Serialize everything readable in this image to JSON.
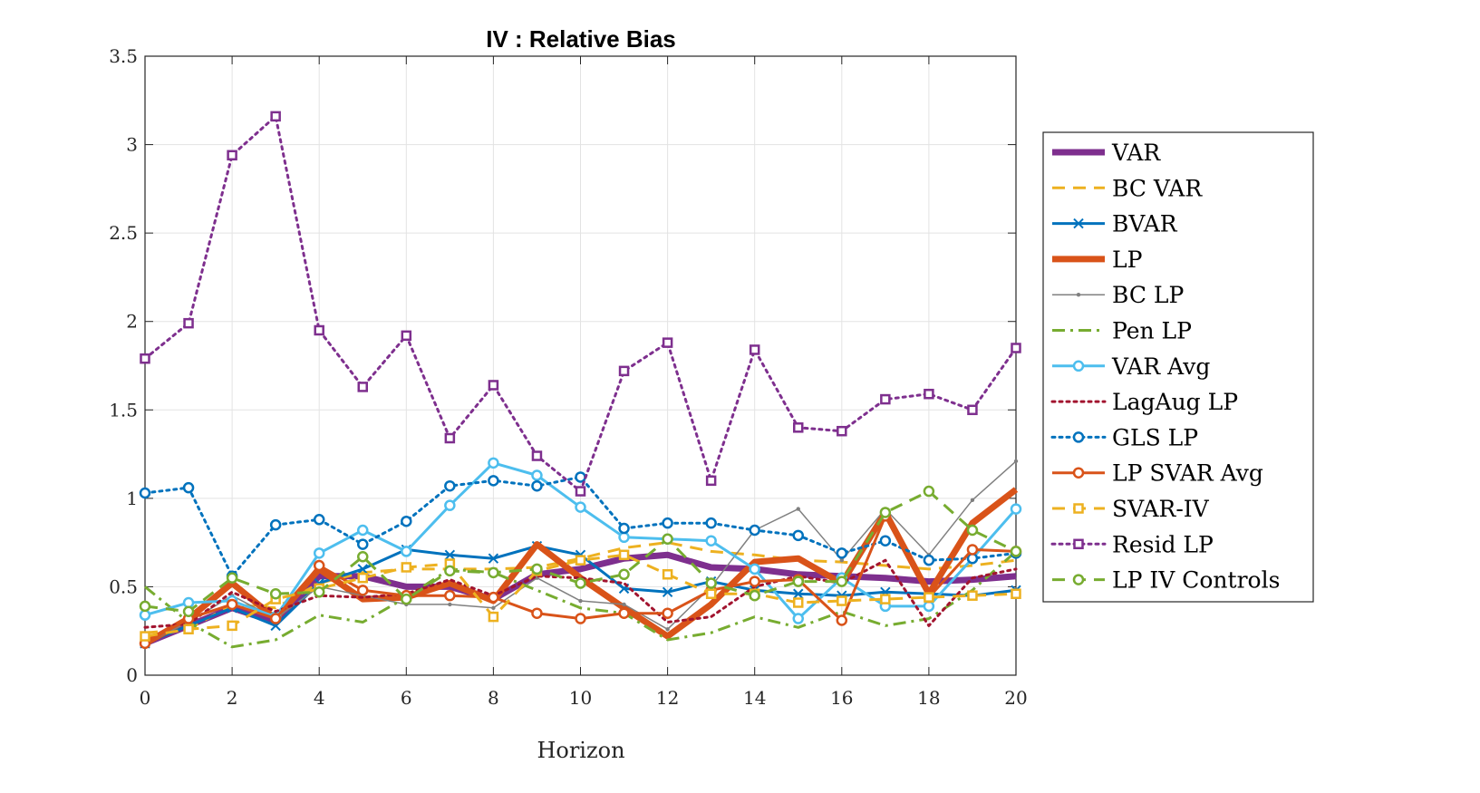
{
  "chart_data": {
    "type": "line",
    "title": "IV : Relative Bias",
    "xlabel": "Horizon",
    "ylabel": "",
    "xlim": [
      0,
      20
    ],
    "ylim": [
      0,
      3.5
    ],
    "xticks": [
      0,
      2,
      4,
      6,
      8,
      10,
      12,
      14,
      16,
      18,
      20
    ],
    "yticks": [
      0,
      0.5,
      1,
      1.5,
      2,
      2.5,
      3,
      3.5
    ],
    "ytick_labels": [
      "0",
      "0.5",
      "1",
      "1.5",
      "2",
      "2.5",
      "3",
      "3.5"
    ],
    "grid": true,
    "legend_position": "outside-right",
    "x": [
      0,
      1,
      2,
      3,
      4,
      5,
      6,
      7,
      8,
      9,
      10,
      11,
      12,
      13,
      14,
      15,
      16,
      17,
      18,
      19,
      20
    ],
    "series": [
      {
        "name": "VAR",
        "color": "#7E2F8E",
        "dash": "solid",
        "marker": "none",
        "values": [
          0.18,
          0.28,
          0.38,
          0.3,
          0.56,
          0.56,
          0.5,
          0.5,
          0.43,
          0.57,
          0.6,
          0.66,
          0.68,
          0.61,
          0.6,
          0.57,
          0.56,
          0.55,
          0.53,
          0.54,
          0.56
        ]
      },
      {
        "name": "BC VAR",
        "color": "#EDB120",
        "dash": "dashed",
        "marker": "none",
        "values": [
          0.24,
          0.26,
          0.4,
          0.38,
          0.52,
          0.58,
          0.6,
          0.6,
          0.6,
          0.61,
          0.66,
          0.72,
          0.75,
          0.7,
          0.68,
          0.65,
          0.64,
          0.62,
          0.6,
          0.62,
          0.65
        ]
      },
      {
        "name": "BVAR",
        "color": "#0072BD",
        "dash": "solid",
        "marker": "x",
        "values": [
          0.18,
          0.28,
          0.38,
          0.28,
          0.52,
          0.6,
          0.71,
          0.68,
          0.66,
          0.73,
          0.68,
          0.49,
          0.47,
          0.53,
          0.48,
          0.46,
          0.45,
          0.47,
          0.46,
          0.45,
          0.48
        ]
      },
      {
        "name": "LP",
        "color": "#D95319",
        "dash": "solid",
        "marker": "none",
        "values": [
          0.18,
          0.32,
          0.52,
          0.32,
          0.6,
          0.43,
          0.44,
          0.52,
          0.42,
          0.74,
          0.55,
          0.38,
          0.22,
          0.4,
          0.64,
          0.66,
          0.52,
          0.92,
          0.46,
          0.86,
          1.05
        ]
      },
      {
        "name": "BC LP",
        "color": "#808080",
        "dash": "solid",
        "marker": "dot",
        "values": [
          0.18,
          0.3,
          0.45,
          0.32,
          0.5,
          0.45,
          0.4,
          0.4,
          0.38,
          0.55,
          0.42,
          0.4,
          0.26,
          0.5,
          0.82,
          0.94,
          0.65,
          0.94,
          0.68,
          0.99,
          1.21
        ]
      },
      {
        "name": "Pen LP",
        "color": "#77AC30",
        "dash": "dashdot",
        "marker": "none",
        "values": [
          0.5,
          0.3,
          0.16,
          0.2,
          0.34,
          0.3,
          0.44,
          0.6,
          0.58,
          0.48,
          0.38,
          0.35,
          0.2,
          0.24,
          0.33,
          0.27,
          0.36,
          0.28,
          0.32,
          0.48,
          0.7
        ]
      },
      {
        "name": "VAR Avg",
        "color": "#4DBEEE",
        "dash": "solid",
        "marker": "circle",
        "values": [
          0.34,
          0.41,
          0.42,
          0.33,
          0.69,
          0.82,
          0.7,
          0.96,
          1.2,
          1.13,
          0.95,
          0.78,
          0.77,
          0.76,
          0.6,
          0.32,
          0.55,
          0.39,
          0.39,
          0.66,
          0.94
        ]
      },
      {
        "name": "LagAug LP",
        "color": "#A2142F",
        "dash": "dotted",
        "marker": "none",
        "values": [
          0.27,
          0.29,
          0.47,
          0.36,
          0.45,
          0.44,
          0.46,
          0.54,
          0.45,
          0.56,
          0.55,
          0.52,
          0.3,
          0.33,
          0.5,
          0.56,
          0.52,
          0.65,
          0.28,
          0.55,
          0.6
        ]
      },
      {
        "name": "GLS LP",
        "color": "#0072BD",
        "dash": "dotted",
        "marker": "circle",
        "values": [
          1.03,
          1.06,
          0.56,
          0.85,
          0.88,
          0.74,
          0.87,
          1.07,
          1.1,
          1.07,
          1.12,
          0.83,
          0.86,
          0.86,
          0.82,
          0.79,
          0.69,
          0.76,
          0.65,
          0.66,
          0.69
        ]
      },
      {
        "name": "LP SVAR Avg",
        "color": "#D95319",
        "dash": "solid",
        "marker": "circle",
        "values": [
          0.18,
          0.32,
          0.4,
          0.32,
          0.62,
          0.48,
          0.45,
          0.45,
          0.44,
          0.35,
          0.32,
          0.35,
          0.35,
          0.48,
          0.53,
          0.54,
          0.31,
          0.9,
          0.44,
          0.71,
          0.7
        ]
      },
      {
        "name": "SVAR-IV",
        "color": "#EDB120",
        "dash": "dashed",
        "marker": "square",
        "values": [
          0.22,
          0.26,
          0.28,
          0.43,
          0.49,
          0.55,
          0.61,
          0.63,
          0.33,
          0.59,
          0.65,
          0.68,
          0.57,
          0.46,
          0.46,
          0.41,
          0.42,
          0.43,
          0.44,
          0.45,
          0.46
        ]
      },
      {
        "name": "Resid LP",
        "color": "#7E2F8E",
        "dash": "dotted",
        "marker": "square",
        "values": [
          1.79,
          1.99,
          2.94,
          3.16,
          1.95,
          1.63,
          1.92,
          1.34,
          1.64,
          1.24,
          1.04,
          1.72,
          1.88,
          1.1,
          1.84,
          1.4,
          1.38,
          1.56,
          1.59,
          1.5,
          1.85
        ]
      },
      {
        "name": "LP IV Controls",
        "color": "#77AC30",
        "dash": "dashed",
        "marker": "circle",
        "values": [
          0.39,
          0.36,
          0.55,
          0.46,
          0.47,
          0.67,
          0.43,
          0.59,
          0.58,
          0.6,
          0.52,
          0.57,
          0.77,
          0.52,
          0.45,
          0.53,
          0.53,
          0.92,
          1.04,
          0.82,
          0.7
        ]
      }
    ]
  }
}
